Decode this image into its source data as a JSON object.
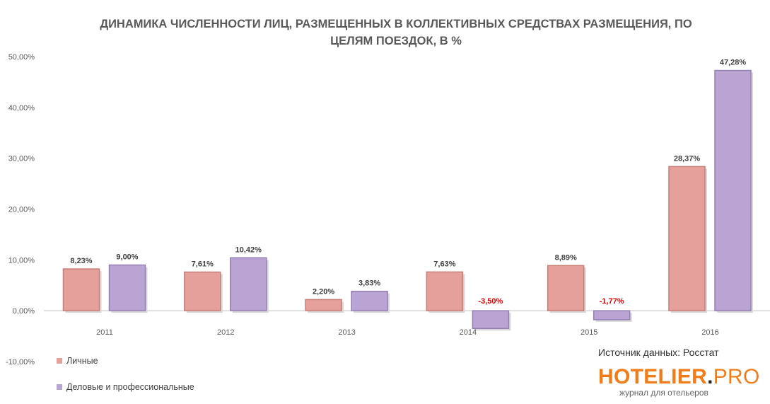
{
  "title_line1": "ДИНАМИКА ЧИСЛЕННОСТИ ЛИЦ, РАЗМЕЩЕННЫХ В КОЛЛЕКТИВНЫХ СРЕДСТВАХ РАЗМЕЩЕНИЯ, ПО",
  "title_line2": "ЦЕЛЯМ ПОЕЗДОК, В %",
  "source_text": "Источник данных: Росстат",
  "logo": {
    "brand": "HOTELIER",
    "dot": ".",
    "pro": "PRO",
    "tagline": "журнал для отельеров"
  },
  "colors": {
    "series1": "#e5a09b",
    "series1_edge": "#c97e78",
    "series2": "#b9a4d3",
    "series2_edge": "#9580b3",
    "negative_label": "#e00000",
    "label": "#404040",
    "axis": "#595959"
  },
  "chart_data": {
    "type": "bar",
    "title": "ДИНАМИКА ЧИСЛЕННОСТИ ЛИЦ, РАЗМЕЩЕННЫХ В КОЛЛЕКТИВНЫХ СРЕДСТВАХ РАЗМЕЩЕНИЯ, ПО ЦЕЛЯМ ПОЕЗДОК, В %",
    "categories": [
      "2011",
      "2012",
      "2013",
      "2014",
      "2015",
      "2016"
    ],
    "series": [
      {
        "name": "Личные",
        "values": [
          8.23,
          7.61,
          2.2,
          7.63,
          8.89,
          28.37
        ],
        "labels": [
          "8,23%",
          "7,61%",
          "2,20%",
          "7,63%",
          "8,89%",
          "28,37%"
        ]
      },
      {
        "name": "Деловые и профессиональные",
        "values": [
          9.0,
          10.42,
          3.83,
          -3.5,
          -1.77,
          47.28
        ],
        "labels": [
          "9,00%",
          "10,42%",
          "3,83%",
          "-3,50%",
          "-1,77%",
          "47,28%"
        ]
      }
    ],
    "ylim": [
      -10,
      50
    ],
    "yticks": [
      -10,
      0,
      10,
      20,
      30,
      40,
      50
    ],
    "ytick_labels": [
      "-10,00%",
      "0,00%",
      "10,00%",
      "20,00%",
      "30,00%",
      "40,00%",
      "50,00%"
    ],
    "grid": false,
    "legend_position": "bottom-left"
  }
}
